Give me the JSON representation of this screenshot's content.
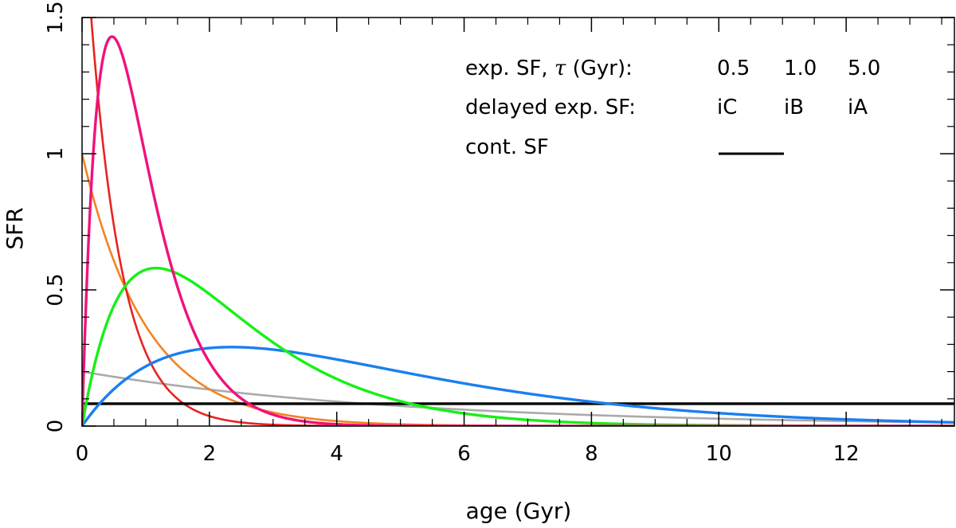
{
  "chart_data": {
    "type": "line",
    "title": "",
    "xlabel": "age (Gyr)",
    "ylabel": "SFR",
    "xlim": [
      0,
      13.7
    ],
    "ylim": [
      0,
      1.5
    ],
    "x_ticks": [
      0,
      2,
      4,
      6,
      8,
      10,
      12
    ],
    "y_ticks": [
      0,
      0.5,
      1,
      1.5
    ],
    "x_tick_labels": [
      "0",
      "2",
      "4",
      "6",
      "8",
      "10",
      "12"
    ],
    "y_tick_labels": [
      "0",
      "0.5",
      "1",
      "1.5"
    ],
    "legend": {
      "position": "top-right",
      "rows": [
        {
          "label_prefix": "exp. SF, ",
          "label_symbol": "τ",
          "label_suffix": " (Gyr):",
          "entries": [
            {
              "text": "0.5",
              "color": "#e8231f"
            },
            {
              "text": "1.0",
              "color": "#f5821f"
            },
            {
              "text": "5.0",
              "color": "#aaaaaa"
            }
          ]
        },
        {
          "label": "delayed exp. SF:",
          "entries": [
            {
              "text": "iC",
              "color": "#f0127c"
            },
            {
              "text": "iB",
              "color": "#16f016"
            },
            {
              "text": "iA",
              "color": "#1a7ff0"
            }
          ]
        },
        {
          "label": "cont. SF",
          "line_color": "#000000"
        }
      ]
    },
    "series": [
      {
        "name": "exp. SF tau=0.5",
        "kind": "exponential",
        "tau": 0.5,
        "amplitude": 2.0,
        "color": "#e8231f"
      },
      {
        "name": "exp. SF tau=1.0",
        "kind": "exponential",
        "tau": 1.0,
        "amplitude": 1.0,
        "color": "#f5821f"
      },
      {
        "name": "exp. SF tau=5.0",
        "kind": "exponential",
        "tau": 5.0,
        "amplitude": 0.2,
        "color": "#aaaaaa"
      },
      {
        "name": "delayed exp. SF iC",
        "kind": "delayed",
        "tau": 0.47,
        "peak": 1.43,
        "color": "#f0127c"
      },
      {
        "name": "delayed exp. SF iB",
        "kind": "delayed",
        "tau": 1.16,
        "peak": 0.58,
        "color": "#16f016"
      },
      {
        "name": "delayed exp. SF iA",
        "kind": "delayed",
        "tau": 2.35,
        "peak": 0.29,
        "color": "#1a7ff0"
      },
      {
        "name": "cont. SF",
        "kind": "constant",
        "value": 0.082,
        "color": "#000000"
      }
    ]
  }
}
